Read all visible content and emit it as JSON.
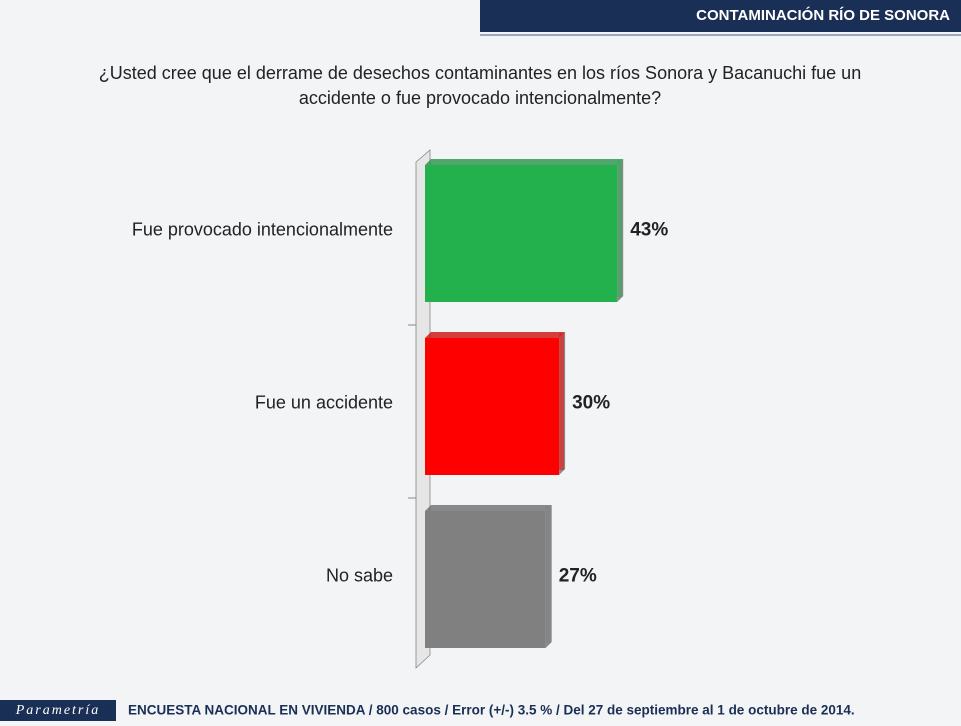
{
  "header": {
    "title": "CONTAMINACIÓN RÍO DE SONORA"
  },
  "chart_data": {
    "type": "bar",
    "orientation": "horizontal",
    "title": "¿Usted cree que el derrame de desechos contaminantes en los ríos Sonora y Bacanuchi fue un accidente o fue provocado intencionalmente?",
    "categories": [
      "Fue provocado intencionalmente",
      "Fue un accidente",
      "No sabe"
    ],
    "values": [
      43,
      30,
      27
    ],
    "value_labels": [
      "43%",
      "30%",
      "27%"
    ],
    "colors": [
      "#22b14c",
      "#ff0000",
      "#808080"
    ]
  },
  "footer": {
    "brand": "Parametría",
    "note": "ENCUESTA NACIONAL EN VIVIENDA / 800 casos / Error (+/-) 3.5 % / Del 27 de septiembre al 1 de octubre de 2014."
  }
}
